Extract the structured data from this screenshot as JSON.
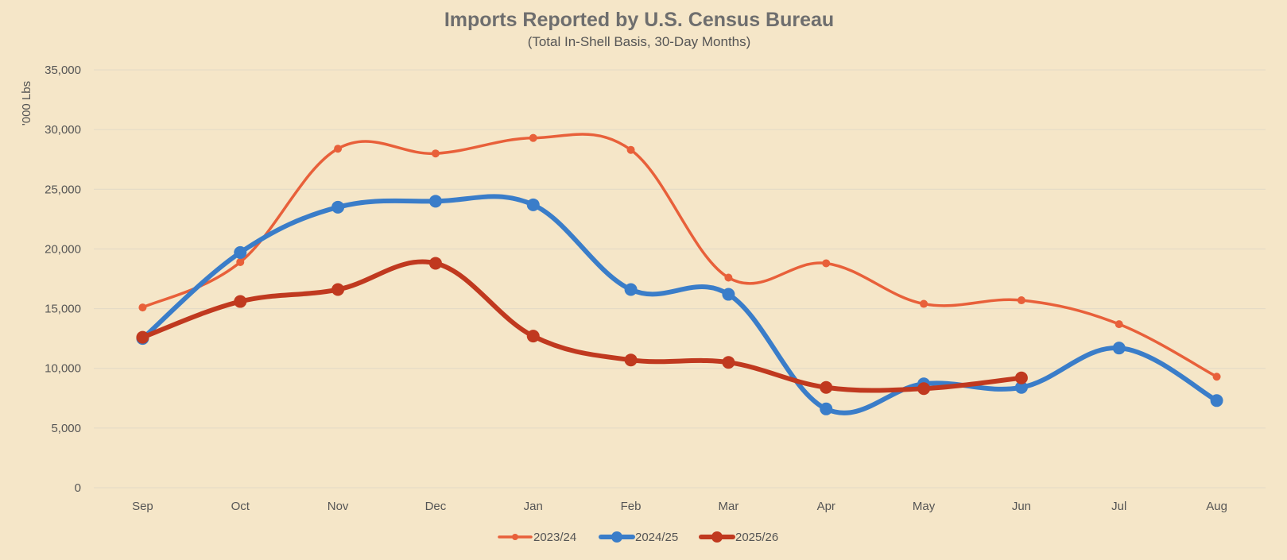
{
  "chart_data": {
    "type": "line",
    "title": "Imports Reported by U.S. Census Bureau",
    "subtitle": "(Total In-Shell Basis, 30-Day Months)",
    "ylabel": "'000 Lbs",
    "xlabel": "",
    "categories": [
      "Sep",
      "Oct",
      "Nov",
      "Dec",
      "Jan",
      "Feb",
      "Mar",
      "Apr",
      "May",
      "Jun",
      "Jul",
      "Aug"
    ],
    "ylim": [
      0,
      35000
    ],
    "yticks": [
      0,
      5000,
      10000,
      15000,
      20000,
      25000,
      30000,
      35000
    ],
    "ytick_labels": [
      "0",
      "5,000",
      "10,000",
      "15,000",
      "20,000",
      "25,000",
      "30,000",
      "35,000"
    ],
    "grid": true,
    "smooth": true,
    "legend_position": "bottom",
    "series": [
      {
        "name": "2023/24",
        "color": "#e8603a",
        "values": [
          15100,
          18900,
          28400,
          28000,
          29300,
          28300,
          17600,
          18800,
          15400,
          15700,
          13700,
          9300
        ]
      },
      {
        "name": "2024/25",
        "color": "#3a7dc9",
        "values": [
          12500,
          19700,
          23500,
          24000,
          23700,
          16600,
          16200,
          6600,
          8700,
          8400,
          11700,
          7300
        ]
      },
      {
        "name": "2025/26",
        "color": "#c0391f",
        "values": [
          12600,
          15600,
          16600,
          18800,
          12700,
          10700,
          10500,
          8400,
          8300,
          9200,
          null,
          null
        ]
      }
    ]
  }
}
